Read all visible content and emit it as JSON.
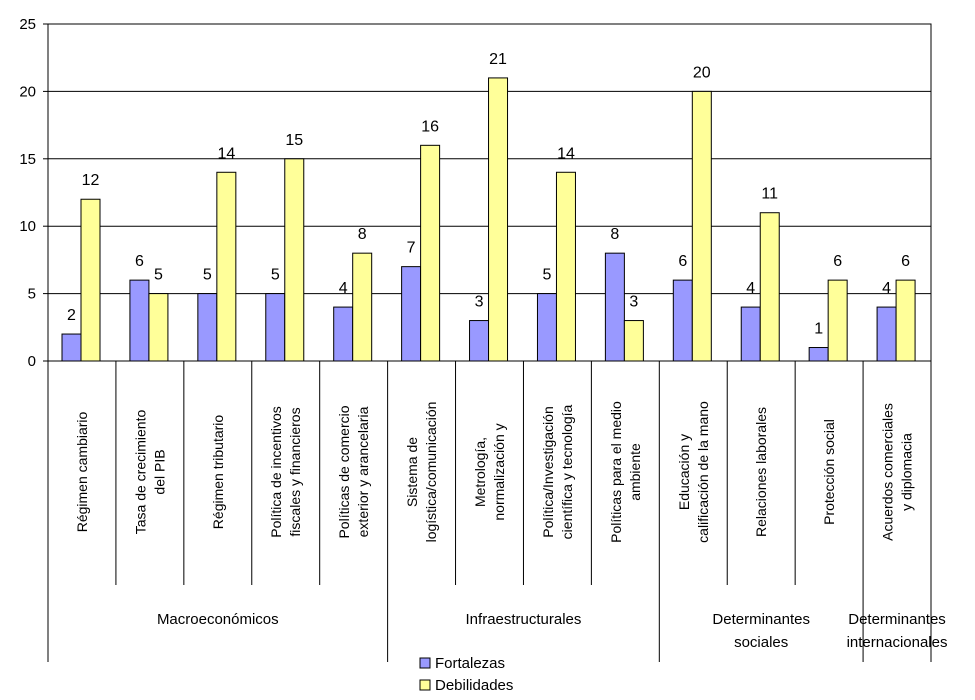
{
  "chart_data": {
    "type": "bar",
    "title": "",
    "xlabel": "",
    "ylabel": "",
    "ylim": [
      0,
      25
    ],
    "yticks": [
      0,
      5,
      10,
      15,
      20,
      25
    ],
    "grid": "horizontal",
    "legend_position": "bottom",
    "categories": [
      [
        "Régimen cambiario"
      ],
      [
        "Tasa de crecimiento",
        "del PIB"
      ],
      [
        "Régimen tributario"
      ],
      [
        "Política de incentivos",
        "fiscales y financieros"
      ],
      [
        "Políticas de comercio",
        "exterior y arancelaria"
      ],
      [
        "Sistema de",
        "logística/comunicación"
      ],
      [
        "Metrología,",
        "normalización y"
      ],
      [
        "Política/Investigación",
        "científica y tecnología"
      ],
      [
        "Políticas para el medio",
        "ambiente"
      ],
      [
        "Educación y",
        "calificación de la mano"
      ],
      [
        "Relaciones laborales"
      ],
      [
        "Protección social"
      ],
      [
        "Acuerdos comerciales",
        "y diplomacia"
      ]
    ],
    "groups": [
      {
        "label": [
          "Macroeconómicos"
        ],
        "start": 0,
        "end": 4
      },
      {
        "label": [
          "Infraestructurales"
        ],
        "start": 5,
        "end": 8
      },
      {
        "label": [
          "Determinantes",
          "sociales"
        ],
        "start": 9,
        "end": 11
      },
      {
        "label": [
          "Determinantes",
          "internacionales"
        ],
        "start": 12,
        "end": 12
      }
    ],
    "series": [
      {
        "name": "Fortalezas",
        "color": "#9999FF",
        "values": [
          2,
          6,
          5,
          5,
          4,
          7,
          3,
          5,
          8,
          6,
          4,
          1,
          4
        ]
      },
      {
        "name": "Debilidades",
        "color": "#FFFF99",
        "values": [
          12,
          5,
          14,
          15,
          8,
          16,
          21,
          14,
          3,
          20,
          11,
          6,
          6
        ]
      }
    ]
  }
}
